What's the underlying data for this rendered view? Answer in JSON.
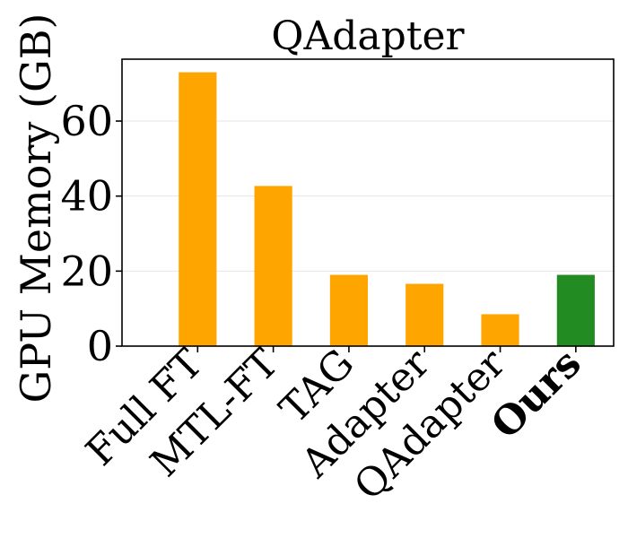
{
  "chart_data": {
    "type": "bar",
    "title": "QAdapter",
    "xlabel": "",
    "ylabel": "GPU Memory (GB)",
    "categories": [
      "Full FT",
      "MTL-FT",
      "TAG",
      "Adapter",
      "QAdapter",
      "Ours"
    ],
    "values": [
      73,
      42.7,
      19,
      16.6,
      8.5,
      19
    ],
    "bar_colors": [
      "#FFA500",
      "#FFA500",
      "#FFA500",
      "#FFA500",
      "#FFA500",
      "#228B22"
    ],
    "highlight_category": "Ours",
    "ylim": [
      0,
      76.5
    ],
    "yticks": [
      0,
      20,
      40,
      60
    ],
    "ytick_labels": [
      "0",
      "20",
      "40",
      "60"
    ],
    "grid": true,
    "legend": "none"
  }
}
